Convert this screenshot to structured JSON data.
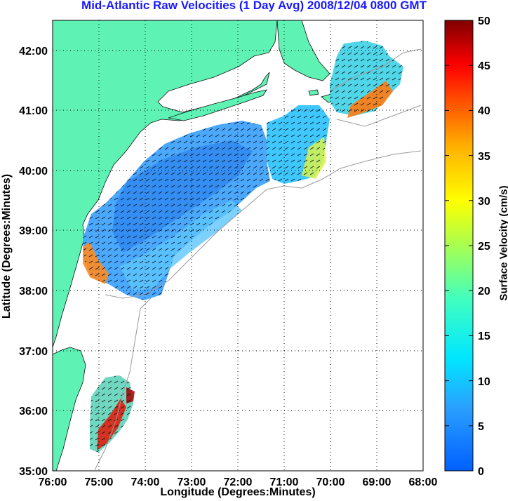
{
  "title": "Mid-Atlantic Raw Velocities (1 Day Avg) 2008/12/04 0800 GMT",
  "xlabel": "Longitude (Degrees:Minutes)",
  "ylabel": "Latitude (Degrees:Minutes)",
  "colorbar_label": "Surface Velocity (cm/s)",
  "colors": {
    "land": "#5ff2b5",
    "title": "#1a1aff"
  },
  "map": {
    "lon_range": [
      -76,
      -68
    ],
    "lat_range": [
      35,
      42.5
    ],
    "x_ticks": [
      {
        "value": -76,
        "label": "76:00"
      },
      {
        "value": -75,
        "label": "75:00"
      },
      {
        "value": -74,
        "label": "74:00"
      },
      {
        "value": -73,
        "label": "73:00"
      },
      {
        "value": -72,
        "label": "72:00"
      },
      {
        "value": -71,
        "label": "71:00"
      },
      {
        "value": -70,
        "label": "70:00"
      },
      {
        "value": -69,
        "label": "69:00"
      },
      {
        "value": -68,
        "label": "68:00"
      }
    ],
    "y_ticks": [
      {
        "value": 35,
        "label": "35:00"
      },
      {
        "value": 36,
        "label": "36:00"
      },
      {
        "value": 37,
        "label": "37:00"
      },
      {
        "value": 38,
        "label": "38:00"
      },
      {
        "value": 39,
        "label": "39:00"
      },
      {
        "value": 40,
        "label": "40:00"
      },
      {
        "value": 41,
        "label": "41:00"
      },
      {
        "value": 42,
        "label": "42:00"
      }
    ],
    "grid": true
  },
  "colorbar": {
    "min": 0,
    "max": 50,
    "ticks": [
      "0",
      "5",
      "10",
      "15",
      "20",
      "25",
      "30",
      "35",
      "40",
      "45",
      "50"
    ],
    "colormap": "jet"
  }
}
